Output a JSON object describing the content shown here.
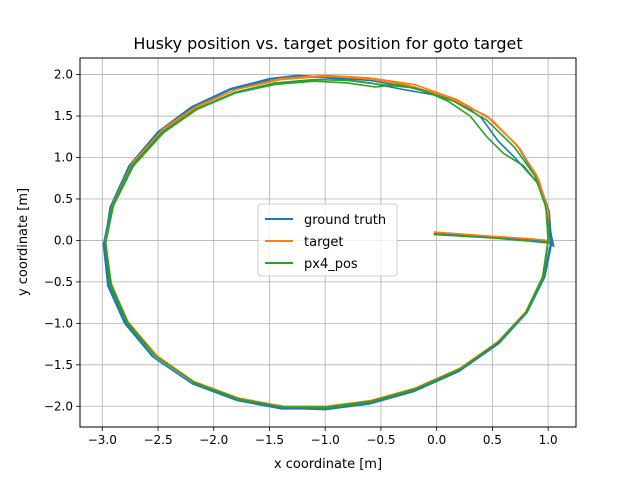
{
  "chart_data": {
    "type": "line",
    "title": "Husky position vs. target position for goto target",
    "xlabel": "x coordinate [m]",
    "ylabel": "y coordinate [m]",
    "xlim": [
      -3.2,
      1.25
    ],
    "ylim": [
      -2.25,
      2.2
    ],
    "xticks": [
      -3.0,
      -2.5,
      -2.0,
      -1.5,
      -1.0,
      -0.5,
      0.0,
      0.5,
      1.0
    ],
    "xtick_labels": [
      "−3.0",
      "−2.5",
      "−2.0",
      "−1.5",
      "−1.0",
      "−0.5",
      "0.0",
      "0.5",
      "1.0"
    ],
    "yticks": [
      2.0,
      1.5,
      1.0,
      0.5,
      0.0,
      -0.5,
      -1.0,
      -1.5,
      -2.0
    ],
    "ytick_labels": [
      "2.0",
      "1.5",
      "1.0",
      "0.5",
      "0.0",
      "−0.5",
      "−1.0",
      "−1.5",
      "−2.0"
    ],
    "grid": true,
    "legend_position": "center",
    "series": [
      {
        "name": "ground truth",
        "color": "#1f77b4",
        "points": [
          [
            -0.02,
            0.08
          ],
          [
            0.5,
            0.04
          ],
          [
            0.85,
            0.01
          ],
          [
            1.0,
            -0.02
          ],
          [
            1.05,
            -0.07
          ],
          [
            1.03,
            0.05
          ],
          [
            1.0,
            0.3
          ],
          [
            0.96,
            0.52
          ],
          [
            0.9,
            0.7
          ],
          [
            0.8,
            0.85
          ],
          [
            0.7,
            1.0
          ],
          [
            0.55,
            1.2
          ],
          [
            0.4,
            1.48
          ],
          [
            0.2,
            1.67
          ],
          [
            0.0,
            1.75
          ],
          [
            -0.3,
            1.82
          ],
          [
            -0.6,
            1.9
          ],
          [
            -0.9,
            1.95
          ],
          [
            -1.2,
            1.98
          ],
          [
            -1.5,
            1.93
          ],
          [
            -1.85,
            1.82
          ],
          [
            -2.2,
            1.6
          ],
          [
            -2.5,
            1.3
          ],
          [
            -2.75,
            0.9
          ],
          [
            -2.92,
            0.4
          ],
          [
            -2.99,
            -0.05
          ],
          [
            -2.95,
            -0.55
          ],
          [
            -2.8,
            -1.0
          ],
          [
            -2.55,
            -1.4
          ],
          [
            -2.2,
            -1.72
          ],
          [
            -1.8,
            -1.92
          ],
          [
            -1.4,
            -2.02
          ],
          [
            -1.0,
            -2.04
          ],
          [
            -0.6,
            -1.97
          ],
          [
            -0.2,
            -1.82
          ],
          [
            0.2,
            -1.58
          ],
          [
            0.55,
            -1.25
          ],
          [
            0.8,
            -0.88
          ],
          [
            0.96,
            -0.45
          ],
          [
            1.02,
            -0.05
          ],
          [
            1.0,
            0.35
          ],
          [
            0.9,
            0.75
          ],
          [
            0.72,
            1.15
          ],
          [
            0.45,
            1.5
          ],
          [
            0.1,
            1.72
          ],
          [
            -0.25,
            1.85
          ],
          [
            -0.6,
            1.93
          ],
          [
            -1.0,
            1.97
          ],
          [
            -1.25,
            1.99
          ],
          [
            -1.5,
            1.95
          ],
          [
            -1.85,
            1.83
          ],
          [
            -2.2,
            1.61
          ],
          [
            -2.5,
            1.31
          ],
          [
            -2.76,
            0.9
          ],
          [
            -2.93,
            0.4
          ],
          [
            -2.98,
            -0.05
          ],
          [
            -2.94,
            -0.55
          ],
          [
            -2.79,
            -1.0
          ],
          [
            -2.54,
            -1.41
          ],
          [
            -2.19,
            -1.73
          ],
          [
            -1.79,
            -1.93
          ],
          [
            -1.39,
            -2.03
          ],
          [
            -1.0,
            -2.03
          ],
          [
            -0.59,
            -1.96
          ],
          [
            -0.19,
            -1.81
          ],
          [
            0.21,
            -1.57
          ],
          [
            0.56,
            -1.24
          ],
          [
            0.81,
            -0.87
          ],
          [
            0.97,
            -0.44
          ],
          [
            1.03,
            -0.04
          ],
          [
            1.01,
            0.35
          ],
          [
            0.92,
            0.7
          ]
        ]
      },
      {
        "name": "target",
        "color": "#ff7f0e",
        "points": [
          [
            -0.02,
            0.1
          ],
          [
            0.5,
            0.05
          ],
          [
            0.85,
            0.02
          ],
          [
            1.0,
            0.0
          ],
          [
            1.0,
            0.35
          ],
          [
            0.92,
            0.72
          ],
          [
            0.75,
            1.1
          ],
          [
            0.5,
            1.45
          ],
          [
            0.18,
            1.7
          ],
          [
            -0.2,
            1.88
          ],
          [
            -0.6,
            1.96
          ],
          [
            -1.0,
            1.99
          ],
          [
            -1.4,
            1.95
          ],
          [
            -1.8,
            1.82
          ],
          [
            -2.15,
            1.62
          ],
          [
            -2.45,
            1.35
          ],
          [
            -2.72,
            0.95
          ],
          [
            -2.9,
            0.45
          ],
          [
            -2.97,
            0.0
          ],
          [
            -2.93,
            -0.5
          ],
          [
            -2.78,
            -0.97
          ],
          [
            -2.52,
            -1.38
          ],
          [
            -2.18,
            -1.7
          ],
          [
            -1.78,
            -1.9
          ],
          [
            -1.38,
            -2.0
          ],
          [
            -1.0,
            -2.01
          ],
          [
            -0.6,
            -1.94
          ],
          [
            -0.2,
            -1.79
          ],
          [
            0.2,
            -1.55
          ],
          [
            0.55,
            -1.22
          ],
          [
            0.8,
            -0.86
          ],
          [
            0.95,
            -0.44
          ],
          [
            1.0,
            0.0
          ],
          [
            0.99,
            0.4
          ],
          [
            0.9,
            0.78
          ],
          [
            0.72,
            1.15
          ],
          [
            0.45,
            1.5
          ],
          [
            0.1,
            1.73
          ],
          [
            -0.25,
            1.87
          ],
          [
            -0.6,
            1.95
          ],
          [
            -1.0,
            1.98
          ],
          [
            -1.4,
            1.94
          ],
          [
            -1.8,
            1.82
          ],
          [
            -2.15,
            1.61
          ],
          [
            -2.46,
            1.33
          ],
          [
            -2.73,
            0.93
          ],
          [
            -2.91,
            0.43
          ],
          [
            -2.97,
            -0.02
          ],
          [
            -2.92,
            -0.52
          ],
          [
            -2.77,
            -0.98
          ],
          [
            -2.51,
            -1.39
          ],
          [
            -2.17,
            -1.71
          ],
          [
            -1.77,
            -1.91
          ],
          [
            -1.37,
            -2.0
          ],
          [
            -0.99,
            -2.0
          ],
          [
            -0.59,
            -1.93
          ],
          [
            -0.19,
            -1.78
          ],
          [
            0.21,
            -1.54
          ],
          [
            0.56,
            -1.21
          ],
          [
            0.81,
            -0.85
          ],
          [
            0.96,
            -0.43
          ],
          [
            1.0,
            0.0
          ]
        ]
      },
      {
        "name": "px4_pos",
        "color": "#2ca02c",
        "points": [
          [
            -0.02,
            0.07
          ],
          [
            0.5,
            0.03
          ],
          [
            0.85,
            -0.01
          ],
          [
            1.0,
            -0.03
          ],
          [
            1.0,
            0.2
          ],
          [
            0.97,
            0.45
          ],
          [
            0.9,
            0.7
          ],
          [
            0.78,
            0.9
          ],
          [
            0.6,
            1.05
          ],
          [
            0.45,
            1.25
          ],
          [
            0.3,
            1.5
          ],
          [
            0.1,
            1.68
          ],
          [
            -0.1,
            1.8
          ],
          [
            -0.35,
            1.88
          ],
          [
            -0.55,
            1.85
          ],
          [
            -0.8,
            1.9
          ],
          [
            -1.1,
            1.92
          ],
          [
            -1.45,
            1.88
          ],
          [
            -1.8,
            1.78
          ],
          [
            -2.15,
            1.58
          ],
          [
            -2.45,
            1.3
          ],
          [
            -2.72,
            0.9
          ],
          [
            -2.9,
            0.42
          ],
          [
            -2.97,
            -0.04
          ],
          [
            -2.93,
            -0.54
          ],
          [
            -2.78,
            -0.99
          ],
          [
            -2.53,
            -1.39
          ],
          [
            -2.18,
            -1.71
          ],
          [
            -1.78,
            -1.91
          ],
          [
            -1.38,
            -2.01
          ],
          [
            -1.0,
            -2.02
          ],
          [
            -0.6,
            -1.95
          ],
          [
            -0.2,
            -1.8
          ],
          [
            0.2,
            -1.56
          ],
          [
            0.55,
            -1.23
          ],
          [
            0.8,
            -0.87
          ],
          [
            0.95,
            -0.44
          ],
          [
            1.0,
            0.0
          ],
          [
            0.98,
            0.4
          ],
          [
            0.88,
            0.78
          ],
          [
            0.7,
            1.12
          ],
          [
            0.45,
            1.45
          ],
          [
            0.15,
            1.68
          ],
          [
            -0.2,
            1.84
          ],
          [
            -0.5,
            1.88
          ],
          [
            -0.8,
            1.93
          ],
          [
            -1.1,
            1.94
          ],
          [
            -1.45,
            1.9
          ],
          [
            -1.8,
            1.79
          ],
          [
            -2.15,
            1.59
          ],
          [
            -2.46,
            1.31
          ],
          [
            -2.73,
            0.91
          ],
          [
            -2.91,
            0.42
          ],
          [
            -2.97,
            -0.03
          ],
          [
            -2.92,
            -0.53
          ],
          [
            -2.77,
            -0.99
          ],
          [
            -2.52,
            -1.4
          ],
          [
            -2.17,
            -1.72
          ],
          [
            -1.77,
            -1.92
          ],
          [
            -1.37,
            -2.01
          ],
          [
            -0.99,
            -2.01
          ],
          [
            -0.59,
            -1.94
          ],
          [
            -0.19,
            -1.79
          ],
          [
            0.21,
            -1.55
          ],
          [
            0.56,
            -1.22
          ],
          [
            0.81,
            -0.86
          ],
          [
            0.96,
            -0.43
          ],
          [
            1.0,
            0.0
          ]
        ]
      }
    ]
  }
}
